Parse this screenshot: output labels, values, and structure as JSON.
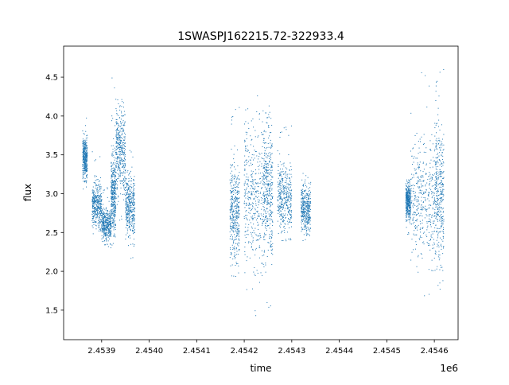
{
  "chart_data": {
    "type": "scatter",
    "title": "1SWASPJ162215.72-322933.4",
    "xlabel": "time",
    "ylabel": "flux",
    "x_offset_label": "1e6",
    "x_offset": 1000000,
    "xlim": [
      2.45382,
      2.45465
    ],
    "ylim": [
      1.12,
      4.9
    ],
    "x_ticks": [
      2.4539,
      2.454,
      2.4541,
      2.4542,
      2.4543,
      2.4544,
      2.4545,
      2.4546
    ],
    "x_tick_labels": [
      "2.4539",
      "2.4540",
      "2.4541",
      "2.4542",
      "2.4543",
      "2.4544",
      "2.4545",
      "2.4546"
    ],
    "y_ticks": [
      1.5,
      2.0,
      2.5,
      3.0,
      3.5,
      4.0,
      4.5
    ],
    "y_tick_labels": [
      "1.5",
      "2.0",
      "2.5",
      "3.0",
      "3.5",
      "4.0",
      "4.5"
    ],
    "grid": false,
    "legend": "none",
    "marker_color": "#1f77b4",
    "series": [
      {
        "segments": [
          {
            "x_range": [
              2.45386,
              2.45387
            ],
            "flux_range": [
              2.95,
              4.0
            ],
            "typical": 3.45
          },
          {
            "x_range": [
              2.45388,
              2.4539
            ],
            "flux_range": [
              2.35,
              3.6
            ],
            "typical": 2.85
          },
          {
            "x_range": [
              2.4539,
              2.45392
            ],
            "flux_range": [
              2.25,
              3.1
            ],
            "typical": 2.6
          },
          {
            "x_range": [
              2.45392,
              2.45393
            ],
            "flux_range": [
              2.1,
              4.7
            ],
            "typical": 3.0
          },
          {
            "x_range": [
              2.45393,
              2.45395
            ],
            "flux_range": [
              2.6,
              4.5
            ],
            "typical": 3.55
          },
          {
            "x_range": [
              2.45395,
              2.45397
            ],
            "flux_range": [
              2.15,
              3.6
            ],
            "typical": 2.85
          },
          {
            "x_range": [
              2.45417,
              2.45419
            ],
            "flux_range": [
              1.65,
              4.15
            ],
            "typical": 2.75
          },
          {
            "x_range": [
              2.4542,
              2.45424
            ],
            "flux_range": [
              1.3,
              4.7
            ],
            "typical": 2.95
          },
          {
            "x_range": [
              2.45424,
              2.45426
            ],
            "flux_range": [
              1.5,
              4.6
            ],
            "typical": 3.05
          },
          {
            "x_range": [
              2.45427,
              2.4543
            ],
            "flux_range": [
              2.2,
              3.9
            ],
            "typical": 2.95
          },
          {
            "x_range": [
              2.45432,
              2.45434
            ],
            "flux_range": [
              2.25,
              3.35
            ],
            "typical": 2.8
          },
          {
            "x_range": [
              2.45454,
              2.45455
            ],
            "flux_range": [
              2.45,
              3.3
            ],
            "typical": 2.9
          },
          {
            "x_range": [
              2.45455,
              2.4546
            ],
            "flux_range": [
              1.65,
              4.65
            ],
            "typical": 2.95
          },
          {
            "x_range": [
              2.4546,
              2.45462
            ],
            "flux_range": [
              1.4,
              4.65
            ],
            "typical": 3.0
          }
        ]
      }
    ]
  }
}
